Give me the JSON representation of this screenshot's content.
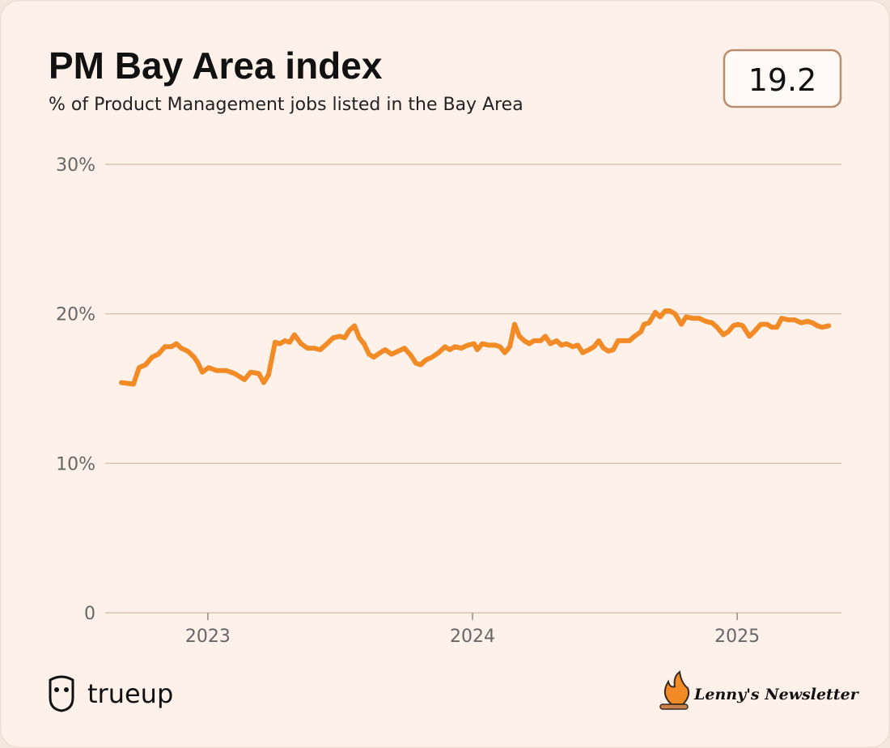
{
  "chart_data": {
    "type": "line",
    "title": "PM Bay Area index",
    "subtitle": "% of Product Management jobs listed in the Bay Area",
    "current_value": 19.2,
    "brand_left": "trueup",
    "brand_right": "Lenny's Newsletter",
    "x": [
      2022.673,
      2022.719,
      2022.74,
      2022.765,
      2022.789,
      2022.813,
      2022.838,
      2022.862,
      2022.881,
      2022.899,
      2022.924,
      2022.948,
      2022.963,
      2022.979,
      2023.003,
      2023.034,
      2023.07,
      2023.101,
      2023.138,
      2023.162,
      2023.193,
      2023.211,
      2023.229,
      2023.254,
      2023.272,
      2023.291,
      2023.309,
      2023.327,
      2023.352,
      2023.376,
      2023.401,
      2023.425,
      2023.45,
      2023.474,
      2023.498,
      2023.517,
      2023.535,
      2023.554,
      2023.572,
      2023.59,
      2023.609,
      2023.627,
      2023.651,
      2023.67,
      2023.694,
      2023.719,
      2023.743,
      2023.768,
      2023.786,
      2023.804,
      2023.823,
      2023.847,
      2023.872,
      2023.896,
      2023.914,
      2023.933,
      2023.957,
      2023.982,
      2024.006,
      2024.018,
      2024.037,
      2024.061,
      2024.086,
      2024.104,
      2024.122,
      2024.141,
      2024.159,
      2024.177,
      2024.196,
      2024.214,
      2024.232,
      2024.257,
      2024.275,
      2024.294,
      2024.318,
      2024.336,
      2024.355,
      2024.379,
      2024.398,
      2024.416,
      2024.44,
      2024.459,
      2024.477,
      2024.495,
      2024.514,
      2024.532,
      2024.55,
      2024.575,
      2024.593,
      2024.612,
      2024.636,
      2024.648,
      2024.667,
      2024.691,
      2024.709,
      2024.728,
      2024.746,
      2024.765,
      2024.789,
      2024.807,
      2024.832,
      2024.856,
      2024.881,
      2024.905,
      2024.924,
      2024.948,
      2024.966,
      2024.985,
      2025.003,
      2025.021,
      2025.046,
      2025.064,
      2025.089,
      2025.113,
      2025.131,
      2025.15,
      2025.168,
      2025.193,
      2025.217,
      2025.242,
      2025.266,
      2025.284,
      2025.303,
      2025.321,
      2025.346
    ],
    "series": [
      {
        "name": "PM Bay Area index",
        "color": "#f28a26",
        "values": [
          15.4,
          15.3,
          16.4,
          16.6,
          17.1,
          17.3,
          17.8,
          17.8,
          18.0,
          17.7,
          17.5,
          17.1,
          16.7,
          16.1,
          16.4,
          16.2,
          16.2,
          16.0,
          15.6,
          16.1,
          16.0,
          15.4,
          15.9,
          18.1,
          18.0,
          18.2,
          18.1,
          18.6,
          18.0,
          17.7,
          17.7,
          17.6,
          18.0,
          18.4,
          18.5,
          18.4,
          18.9,
          19.2,
          18.4,
          18.0,
          17.3,
          17.1,
          17.4,
          17.6,
          17.3,
          17.5,
          17.7,
          17.2,
          16.7,
          16.6,
          16.9,
          17.1,
          17.4,
          17.8,
          17.6,
          17.8,
          17.7,
          17.9,
          18.0,
          17.6,
          18.0,
          17.9,
          17.9,
          17.8,
          17.4,
          17.8,
          19.3,
          18.5,
          18.2,
          18.0,
          18.2,
          18.2,
          18.5,
          18.0,
          18.2,
          17.9,
          18.0,
          17.8,
          17.9,
          17.4,
          17.6,
          17.8,
          18.2,
          17.7,
          17.5,
          17.6,
          18.2,
          18.2,
          18.2,
          18.5,
          18.8,
          19.3,
          19.4,
          20.1,
          19.8,
          20.2,
          20.2,
          20.0,
          19.3,
          19.8,
          19.7,
          19.7,
          19.5,
          19.4,
          19.1,
          18.6,
          18.8,
          19.2,
          19.3,
          19.2,
          18.5,
          18.8,
          19.3,
          19.3,
          19.1,
          19.1,
          19.7,
          19.6,
          19.6,
          19.4,
          19.5,
          19.4,
          19.2,
          19.1,
          19.2
        ]
      }
    ],
    "xlim": [
      2022.612,
      2025.394
    ],
    "xticks": [
      2023,
      2024,
      2025
    ],
    "ylim": [
      0,
      30
    ],
    "yticks": [
      0,
      {
        "value": 10,
        "label": "10%"
      },
      {
        "value": 20,
        "label": "20%"
      },
      {
        "value": 30,
        "label": "30%"
      }
    ],
    "grid": true
  }
}
